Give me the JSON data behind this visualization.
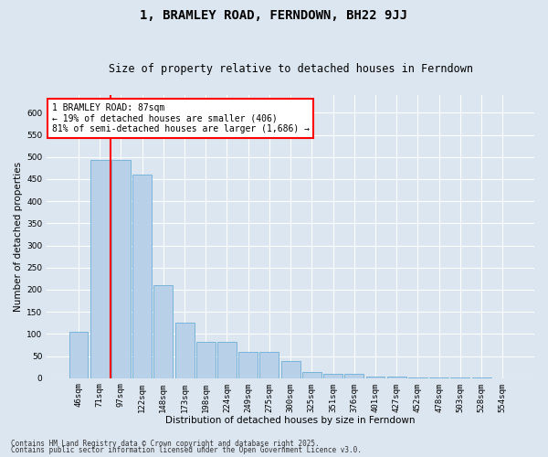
{
  "title": "1, BRAMLEY ROAD, FERNDOWN, BH22 9JJ",
  "subtitle": "Size of property relative to detached houses in Ferndown",
  "xlabel": "Distribution of detached houses by size in Ferndown",
  "ylabel": "Number of detached properties",
  "footnote1": "Contains HM Land Registry data © Crown copyright and database right 2025.",
  "footnote2": "Contains public sector information licensed under the Open Government Licence v3.0.",
  "categories": [
    "46sqm",
    "71sqm",
    "97sqm",
    "122sqm",
    "148sqm",
    "173sqm",
    "198sqm",
    "224sqm",
    "249sqm",
    "275sqm",
    "300sqm",
    "325sqm",
    "351sqm",
    "376sqm",
    "401sqm",
    "427sqm",
    "452sqm",
    "478sqm",
    "503sqm",
    "528sqm",
    "554sqm"
  ],
  "values": [
    105,
    493,
    493,
    460,
    210,
    125,
    82,
    82,
    60,
    60,
    38,
    13,
    10,
    10,
    3,
    3,
    2,
    1,
    1,
    1,
    0
  ],
  "bar_color": "#b8d0e8",
  "bar_edge_color": "#6baed6",
  "vline_x": 1.5,
  "vline_color": "red",
  "annotation_text": "1 BRAMLEY ROAD: 87sqm\n← 19% of detached houses are smaller (406)\n81% of semi-detached houses are larger (1,686) →",
  "annotation_box_color": "red",
  "ylim": [
    0,
    640
  ],
  "yticks": [
    0,
    50,
    100,
    150,
    200,
    250,
    300,
    350,
    400,
    450,
    500,
    550,
    600
  ],
  "background_color": "#dce6f0",
  "plot_background": "#dce6f0",
  "grid_color": "#ffffff",
  "title_fontsize": 10,
  "subtitle_fontsize": 8.5,
  "axis_label_fontsize": 7.5,
  "tick_fontsize": 6.5,
  "annotation_fontsize": 7
}
